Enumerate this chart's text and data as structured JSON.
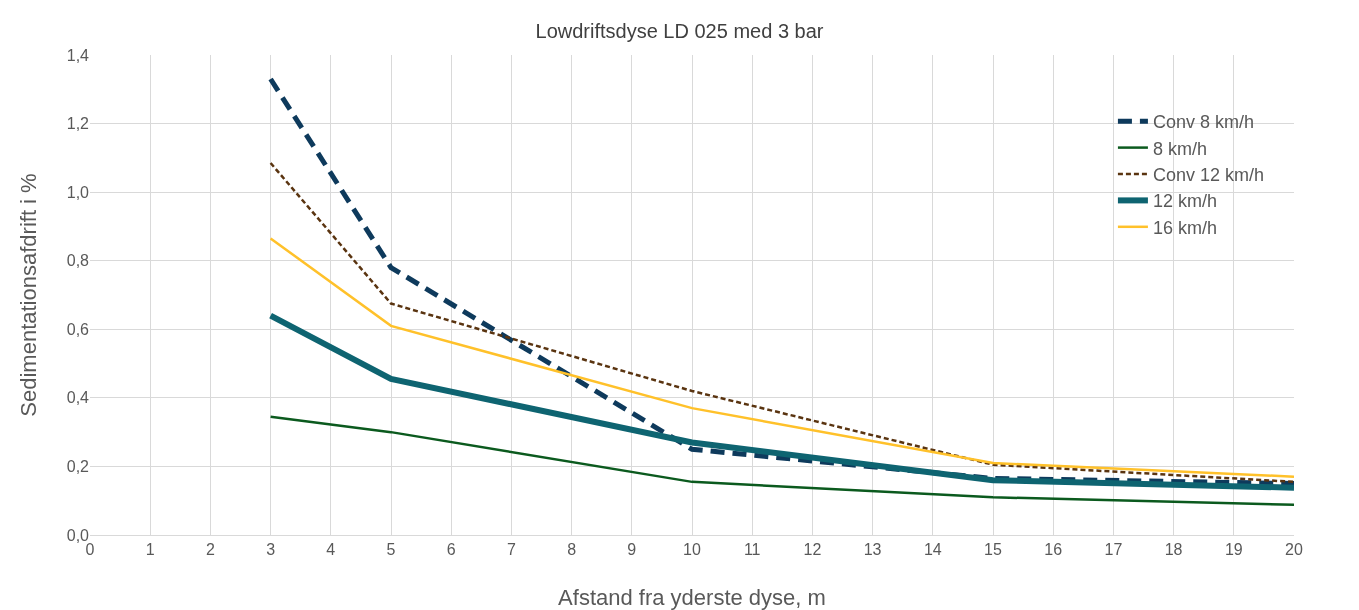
{
  "chart_data": {
    "type": "line",
    "title": "Lowdriftsdyse LD 025 med 3 bar",
    "xlabel": "Afstand fra yderste dyse, m",
    "ylabel": "Sedimentationsafdrift i %",
    "x": [
      3,
      5,
      10,
      15,
      20
    ],
    "series": [
      {
        "name": "Conv 8 km/h",
        "color": "#0e3a5c",
        "line_style": "dashed",
        "values": [
          1.33,
          0.78,
          0.25,
          0.165,
          0.15
        ]
      },
      {
        "name": "8 km/h",
        "color": "#0b5a1e",
        "line_style": "solid",
        "values": [
          0.345,
          0.3,
          0.155,
          0.11,
          0.088
        ]
      },
      {
        "name": "Conv 12 km/h",
        "color": "#5a3410",
        "line_style": "dotted",
        "values": [
          1.085,
          0.675,
          0.42,
          0.205,
          0.155
        ]
      },
      {
        "name": "12 km/h",
        "color": "#0e6471",
        "line_style": "solid",
        "values": [
          0.64,
          0.455,
          0.27,
          0.16,
          0.138
        ]
      },
      {
        "name": "16 km/h",
        "color": "#ffc12a",
        "line_style": "solid",
        "values": [
          0.865,
          0.61,
          0.37,
          0.21,
          0.17
        ]
      }
    ],
    "xlim": [
      0,
      20
    ],
    "xticks": [
      0,
      1,
      2,
      3,
      4,
      5,
      6,
      7,
      8,
      9,
      10,
      11,
      12,
      13,
      14,
      15,
      16,
      17,
      18,
      19,
      20
    ],
    "ylim": [
      0,
      1.4
    ],
    "yticks": [
      {
        "value": 0,
        "label": "0,0"
      },
      {
        "value": 0.2,
        "label": "0,2"
      },
      {
        "value": 0.4,
        "label": "0,4"
      },
      {
        "value": 0.6,
        "label": "0,6"
      },
      {
        "value": 0.8,
        "label": "0,8"
      },
      {
        "value": 1.0,
        "label": "1,0"
      },
      {
        "value": 1.2,
        "label": "1,2"
      },
      {
        "value": 1.4,
        "label": "1,4"
      }
    ],
    "grid": true,
    "legend": "top right",
    "marker": "none"
  }
}
